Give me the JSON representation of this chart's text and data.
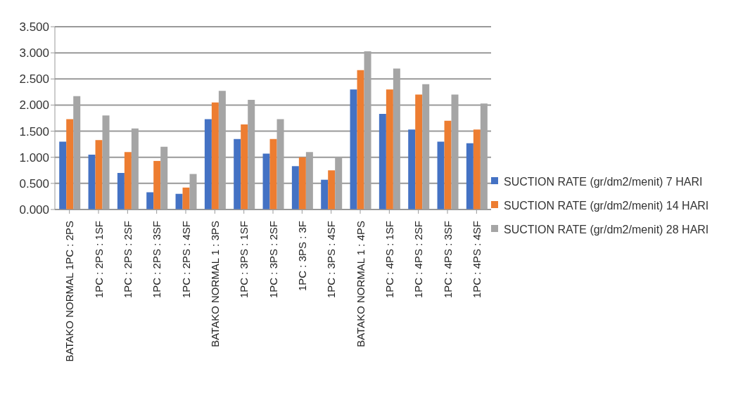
{
  "chart_data": {
    "type": "bar",
    "categories": [
      "BATAKO NORMAL 1PC : 2PS",
      "1PC : 2PS : 1SF",
      "1PC : 2PS : 2SF",
      "1PC : 2PS : 3SF",
      "1PC : 2PS : 4SF",
      "BATAKO NORMAL 1 : 3PS",
      "1PC : 3PS : 1SF",
      "1PC : 3PS : 2SF",
      "1PC : 3PS : 3F",
      "1PC : 3PS : 4SF",
      "BATAKO NORMAL 1 : 4PS",
      "1PC : 4PS : 1SF",
      "1PC : 4PS : 2SF",
      "1PC : 4PS : 3SF",
      "1PC : 4PS : 4SF"
    ],
    "series": [
      {
        "name": "SUCTION RATE (gr/dm2/menit) 7 HARI",
        "color": "#4472c4",
        "values": [
          1.3,
          1.05,
          0.7,
          0.33,
          0.3,
          1.73,
          1.35,
          1.07,
          0.83,
          0.57,
          2.3,
          1.83,
          1.53,
          1.3,
          1.27
        ]
      },
      {
        "name": "SUCTION RATE (gr/dm2/menit) 14 HARI",
        "color": "#ed7d31",
        "values": [
          1.73,
          1.33,
          1.1,
          0.93,
          0.42,
          2.05,
          1.63,
          1.35,
          1.0,
          0.75,
          2.67,
          2.3,
          2.2,
          1.7,
          1.53
        ]
      },
      {
        "name": "SUCTION RATE (gr/dm2/menit) 28 HARI",
        "color": "#a5a5a5",
        "values": [
          2.17,
          1.8,
          1.55,
          1.2,
          0.68,
          2.27,
          2.1,
          1.73,
          1.1,
          1.0,
          3.03,
          2.7,
          2.4,
          2.2,
          2.03
        ]
      }
    ],
    "ylim": [
      0,
      3.5
    ],
    "yticks": [
      {
        "value": 0,
        "label": "0.000"
      },
      {
        "value": 0.5,
        "label": "0.500"
      },
      {
        "value": 1,
        "label": "1.000"
      },
      {
        "value": 1.5,
        "label": "1.500"
      },
      {
        "value": 2,
        "label": "2.000"
      },
      {
        "value": 2.5,
        "label": "2.500"
      },
      {
        "value": 3,
        "label": "3.000"
      },
      {
        "value": 3.5,
        "label": "3.500"
      }
    ],
    "grid": "y",
    "legend": "right"
  }
}
